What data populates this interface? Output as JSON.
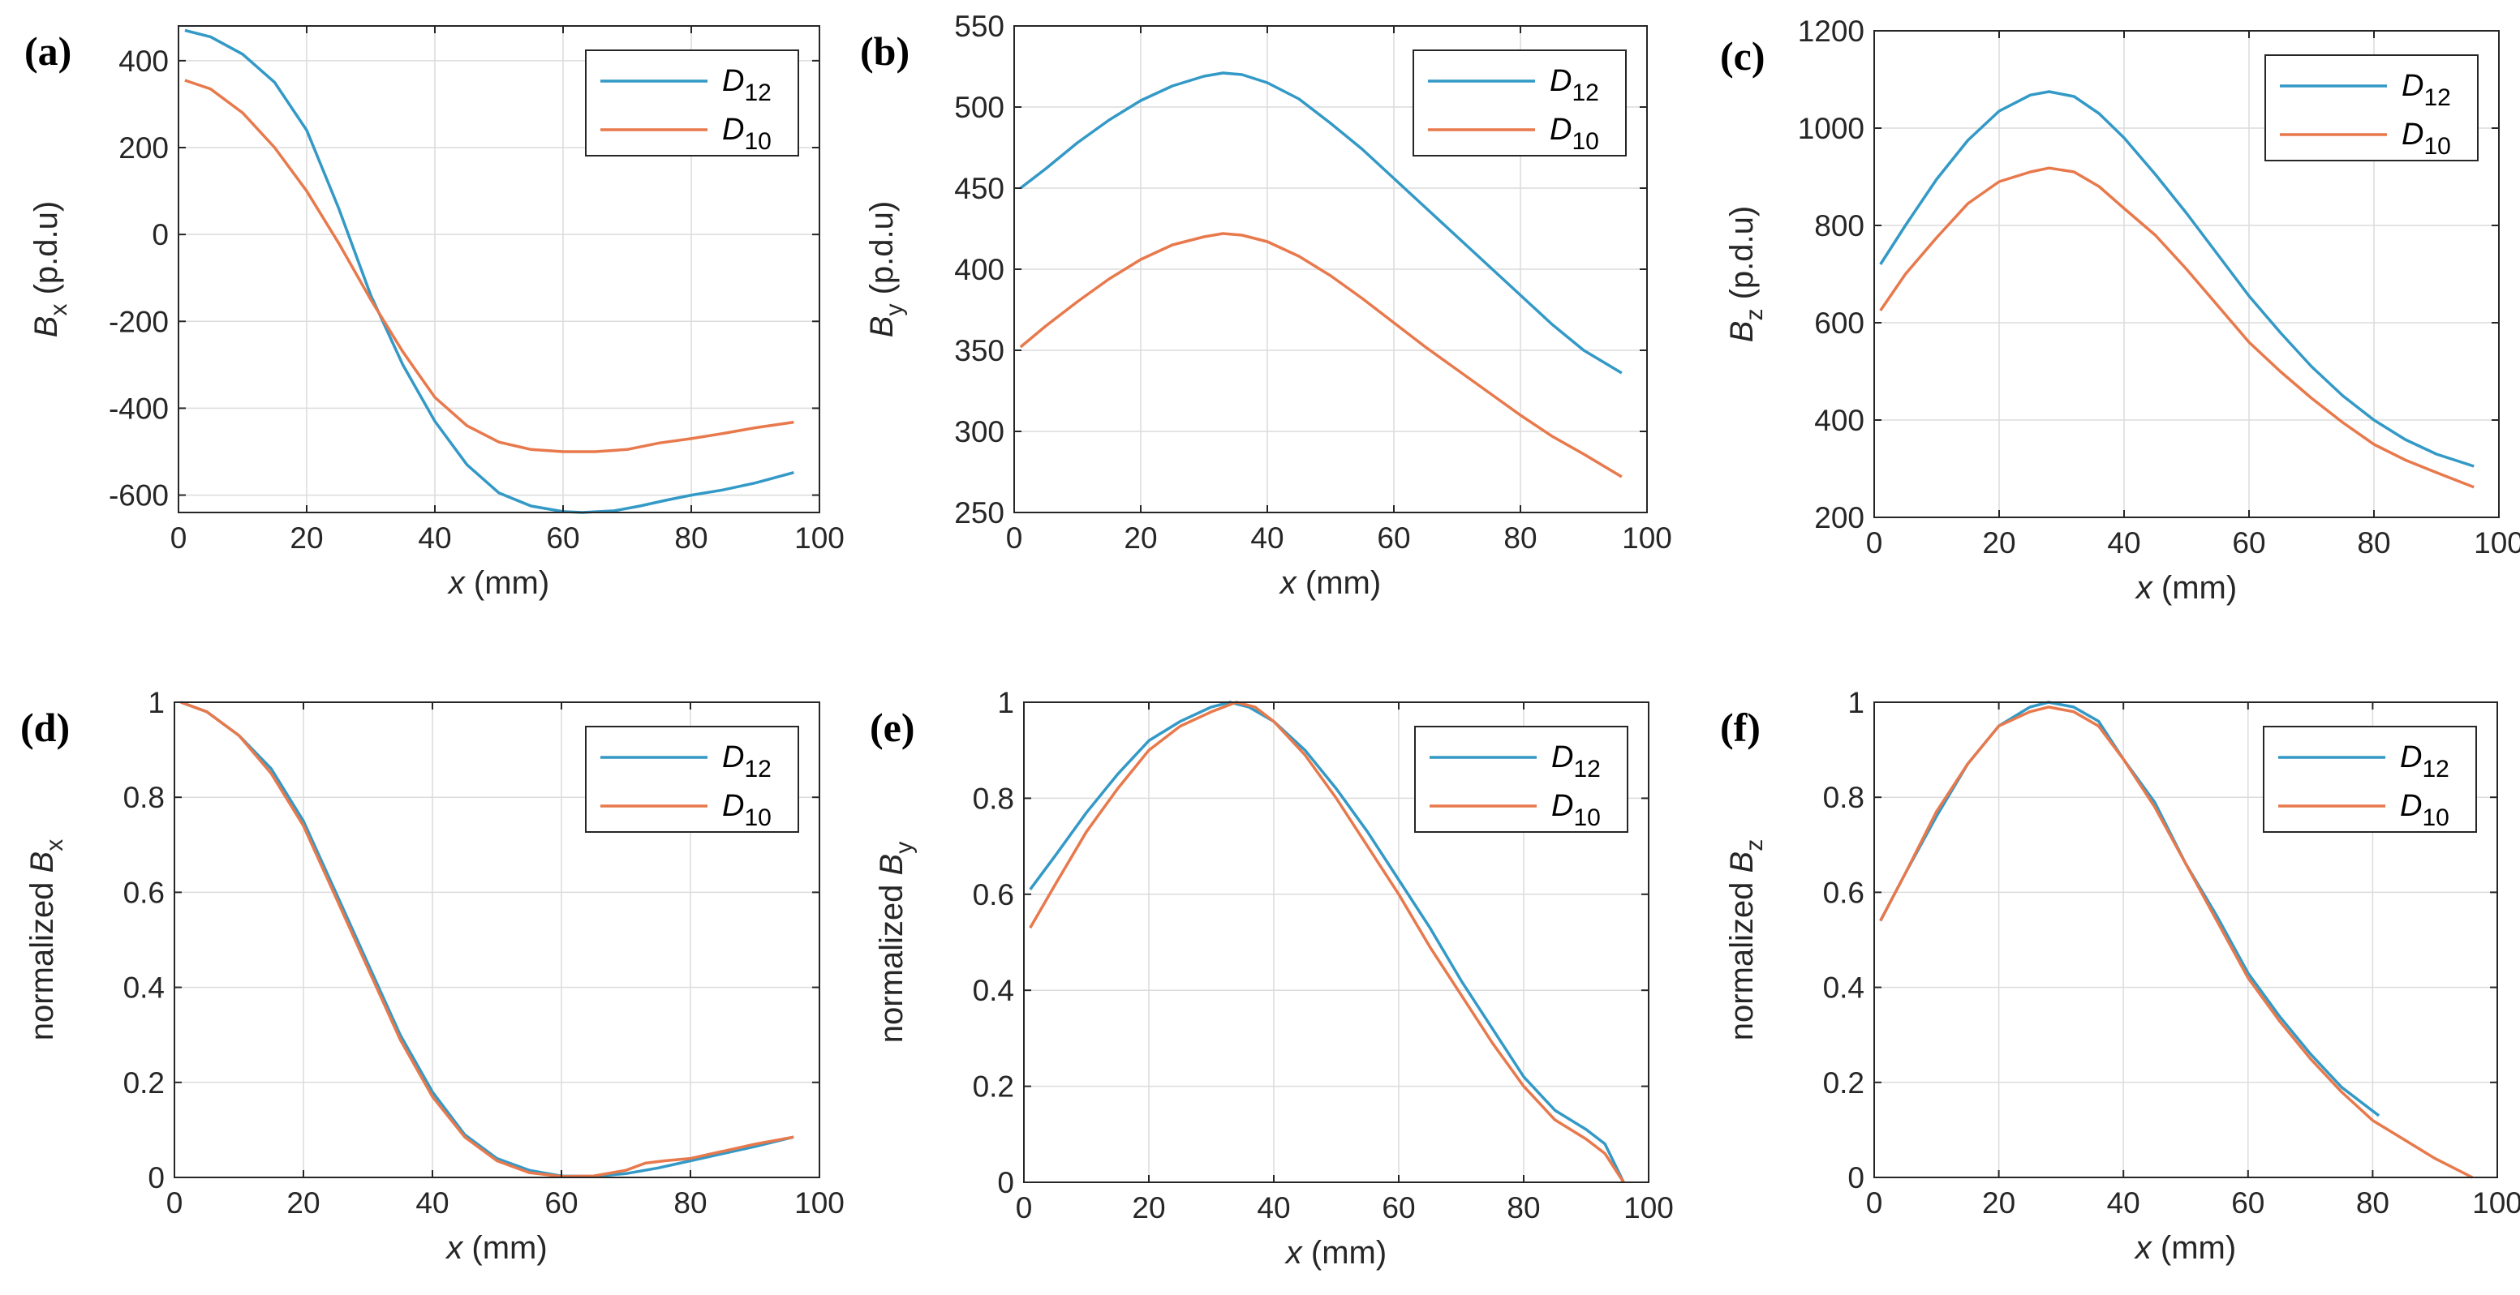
{
  "colors": {
    "D12": "#3399c6",
    "D10": "#e8794c",
    "grid": "#dcdcdc",
    "axis": "#262626"
  },
  "chart_data": [
    {
      "panel": "a",
      "panel_label": "(a)",
      "type": "line",
      "xlabel": {
        "var": "x",
        "unit": " (mm)"
      },
      "ylabel": {
        "prefix": "",
        "var": "B",
        "sub": "x",
        "unit": " (p.d.u)"
      },
      "xlim": [
        0,
        100
      ],
      "ylim": [
        -640,
        480
      ],
      "xticks": [
        0,
        20,
        40,
        60,
        80,
        100
      ],
      "yticks": [
        -600,
        -400,
        -200,
        0,
        200,
        400
      ],
      "grid": true,
      "legend_position": "top-right",
      "series": [
        {
          "name": "D",
          "sub": "12",
          "color": "#3399c6",
          "x": [
            1,
            5,
            10,
            15,
            20,
            25,
            30,
            35,
            40,
            45,
            50,
            55,
            60,
            63,
            68,
            72,
            76,
            80,
            85,
            90,
            96
          ],
          "y": [
            470,
            455,
            415,
            350,
            240,
            60,
            -140,
            -300,
            -430,
            -530,
            -595,
            -625,
            -638,
            -640,
            -636,
            -625,
            -612,
            -600,
            -588,
            -572,
            -548
          ]
        },
        {
          "name": "D",
          "sub": "10",
          "color": "#e8794c",
          "x": [
            1,
            5,
            10,
            15,
            20,
            25,
            30,
            35,
            40,
            45,
            50,
            55,
            60,
            65,
            70,
            75,
            80,
            85,
            90,
            96
          ],
          "y": [
            355,
            335,
            280,
            200,
            100,
            -20,
            -150,
            -270,
            -375,
            -440,
            -478,
            -495,
            -500,
            -500,
            -495,
            -480,
            -470,
            -458,
            -445,
            -432
          ]
        }
      ]
    },
    {
      "panel": "b",
      "panel_label": "(b)",
      "type": "line",
      "xlabel": {
        "var": "x",
        "unit": " (mm)"
      },
      "ylabel": {
        "prefix": "",
        "var": "B",
        "sub": "y",
        "unit": " (p.d.u)"
      },
      "xlim": [
        0,
        100
      ],
      "ylim": [
        250,
        550
      ],
      "xticks": [
        0,
        20,
        40,
        60,
        80,
        100
      ],
      "yticks": [
        250,
        300,
        350,
        400,
        450,
        500,
        550
      ],
      "grid": true,
      "legend_position": "top-right",
      "series": [
        {
          "name": "D",
          "sub": "12",
          "color": "#3399c6",
          "x": [
            1,
            5,
            10,
            15,
            20,
            25,
            30,
            33,
            36,
            40,
            45,
            50,
            55,
            60,
            65,
            70,
            75,
            80,
            85,
            90,
            96
          ],
          "y": [
            450,
            462,
            478,
            492,
            504,
            513,
            519,
            521,
            520,
            515,
            505,
            490,
            474,
            456,
            438,
            420,
            402,
            384,
            366,
            350,
            336
          ]
        },
        {
          "name": "D",
          "sub": "10",
          "color": "#e8794c",
          "x": [
            1,
            5,
            10,
            15,
            20,
            25,
            30,
            33,
            36,
            40,
            45,
            50,
            55,
            60,
            65,
            70,
            75,
            80,
            85,
            90,
            96
          ],
          "y": [
            352,
            365,
            380,
            394,
            406,
            415,
            420,
            422,
            421,
            417,
            408,
            396,
            382,
            367,
            352,
            338,
            324,
            310,
            297,
            286,
            272
          ]
        }
      ]
    },
    {
      "panel": "c",
      "panel_label": "(c)",
      "type": "line",
      "xlabel": {
        "var": "x",
        "unit": " (mm)"
      },
      "ylabel": {
        "prefix": "",
        "var": "B",
        "sub": "z",
        "unit": " (p.d.u)"
      },
      "xlim": [
        0,
        100
      ],
      "ylim": [
        200,
        1200
      ],
      "xticks": [
        0,
        20,
        40,
        60,
        80,
        100
      ],
      "yticks": [
        200,
        400,
        600,
        800,
        1000,
        1200
      ],
      "grid": true,
      "legend_position": "top-right",
      "series": [
        {
          "name": "D",
          "sub": "12",
          "color": "#3399c6",
          "x": [
            1,
            5,
            10,
            15,
            20,
            25,
            28,
            32,
            36,
            40,
            45,
            50,
            55,
            60,
            65,
            70,
            75,
            80,
            85,
            90,
            96
          ],
          "y": [
            720,
            800,
            895,
            975,
            1035,
            1068,
            1075,
            1065,
            1030,
            980,
            905,
            825,
            740,
            655,
            580,
            510,
            450,
            400,
            360,
            330,
            305
          ]
        },
        {
          "name": "D",
          "sub": "10",
          "color": "#e8794c",
          "x": [
            1,
            5,
            10,
            15,
            20,
            25,
            28,
            32,
            36,
            40,
            45,
            50,
            55,
            60,
            65,
            70,
            75,
            80,
            85,
            90,
            96
          ],
          "y": [
            625,
            700,
            775,
            845,
            890,
            910,
            918,
            910,
            880,
            835,
            780,
            710,
            635,
            560,
            500,
            445,
            395,
            350,
            318,
            292,
            262
          ]
        }
      ]
    },
    {
      "panel": "d",
      "panel_label": "(d)",
      "type": "line",
      "xlabel": {
        "var": "x",
        "unit": " (mm)"
      },
      "ylabel": {
        "prefix": "normalized ",
        "var": "B",
        "sub": "x",
        "unit": ""
      },
      "xlim": [
        0,
        100
      ],
      "ylim": [
        0,
        1
      ],
      "xticks": [
        0,
        20,
        40,
        60,
        80,
        100
      ],
      "yticks": [
        0,
        0.2,
        0.4,
        0.6,
        0.8,
        1
      ],
      "grid": true,
      "legend_position": "top-right",
      "series": [
        {
          "name": "D",
          "sub": "12",
          "color": "#3399c6",
          "x": [
            1,
            5,
            10,
            15,
            20,
            25,
            30,
            35,
            40,
            45,
            50,
            55,
            60,
            65,
            70,
            75,
            80,
            85,
            90,
            96
          ],
          "y": [
            1.0,
            0.98,
            0.93,
            0.86,
            0.75,
            0.6,
            0.45,
            0.3,
            0.18,
            0.09,
            0.04,
            0.015,
            0.003,
            0.002,
            0.008,
            0.02,
            0.035,
            0.05,
            0.065,
            0.085
          ]
        },
        {
          "name": "D",
          "sub": "10",
          "color": "#e8794c",
          "x": [
            1,
            5,
            10,
            15,
            20,
            25,
            30,
            35,
            40,
            45,
            50,
            55,
            60,
            65,
            70,
            73,
            76,
            80,
            85,
            90,
            96
          ],
          "y": [
            1.0,
            0.98,
            0.93,
            0.85,
            0.74,
            0.59,
            0.44,
            0.29,
            0.17,
            0.085,
            0.035,
            0.01,
            0.002,
            0.003,
            0.015,
            0.03,
            0.035,
            0.04,
            0.055,
            0.07,
            0.085
          ]
        }
      ]
    },
    {
      "panel": "e",
      "panel_label": "(e)",
      "type": "line",
      "xlabel": {
        "var": "x",
        "unit": " (mm)"
      },
      "ylabel": {
        "prefix": "normalized ",
        "var": "B",
        "sub": "y",
        "unit": ""
      },
      "xlim": [
        0,
        100
      ],
      "ylim": [
        0,
        1
      ],
      "xticks": [
        0,
        20,
        40,
        60,
        80,
        100
      ],
      "yticks": [
        0,
        0.2,
        0.4,
        0.6,
        0.8,
        1
      ],
      "grid": true,
      "legend_position": "top-right",
      "series": [
        {
          "name": "D",
          "sub": "12",
          "color": "#3399c6",
          "x": [
            1,
            5,
            10,
            15,
            20,
            25,
            30,
            33,
            36,
            40,
            45,
            50,
            55,
            60,
            65,
            70,
            75,
            80,
            85,
            90,
            93,
            96
          ],
          "y": [
            0.61,
            0.68,
            0.77,
            0.85,
            0.92,
            0.96,
            0.99,
            1.0,
            0.99,
            0.96,
            0.9,
            0.82,
            0.73,
            0.63,
            0.53,
            0.42,
            0.32,
            0.22,
            0.15,
            0.11,
            0.08,
            0.0
          ]
        },
        {
          "name": "D",
          "sub": "10",
          "color": "#e8794c",
          "x": [
            1,
            5,
            10,
            15,
            20,
            25,
            30,
            34,
            37,
            40,
            45,
            50,
            55,
            60,
            65,
            70,
            75,
            80,
            85,
            90,
            93,
            96
          ],
          "y": [
            0.53,
            0.62,
            0.73,
            0.82,
            0.9,
            0.95,
            0.98,
            1.0,
            0.99,
            0.96,
            0.89,
            0.8,
            0.7,
            0.6,
            0.49,
            0.39,
            0.29,
            0.2,
            0.13,
            0.09,
            0.06,
            0.0
          ]
        }
      ]
    },
    {
      "panel": "f",
      "panel_label": "(f)",
      "type": "line",
      "xlabel": {
        "var": "x",
        "unit": " (mm)"
      },
      "ylabel": {
        "prefix": "normalized ",
        "var": "B",
        "sub": "z",
        "unit": ""
      },
      "xlim": [
        0,
        100
      ],
      "ylim": [
        0,
        1
      ],
      "xticks": [
        0,
        20,
        40,
        60,
        80,
        100
      ],
      "yticks": [
        0,
        0.2,
        0.4,
        0.6,
        0.8,
        1
      ],
      "grid": true,
      "legend_position": "top-right",
      "series": [
        {
          "name": "D",
          "sub": "12",
          "color": "#3399c6",
          "x": [
            1,
            5,
            10,
            15,
            20,
            25,
            28,
            32,
            36,
            40,
            45,
            50,
            55,
            60,
            65,
            70,
            75,
            80,
            81
          ],
          "y": [
            0.54,
            0.64,
            0.76,
            0.87,
            0.95,
            0.99,
            1.0,
            0.99,
            0.96,
            0.88,
            0.79,
            0.66,
            0.55,
            0.43,
            0.34,
            0.26,
            0.19,
            0.14,
            0.13
          ]
        },
        {
          "name": "D",
          "sub": "10",
          "color": "#e8794c",
          "x": [
            1,
            5,
            10,
            15,
            20,
            25,
            28,
            32,
            36,
            40,
            45,
            50,
            55,
            60,
            65,
            70,
            75,
            80,
            85,
            90,
            96
          ],
          "y": [
            0.54,
            0.64,
            0.77,
            0.87,
            0.95,
            0.98,
            0.99,
            0.98,
            0.95,
            0.88,
            0.78,
            0.66,
            0.54,
            0.42,
            0.33,
            0.25,
            0.18,
            0.12,
            0.08,
            0.04,
            0.0
          ]
        }
      ]
    }
  ]
}
